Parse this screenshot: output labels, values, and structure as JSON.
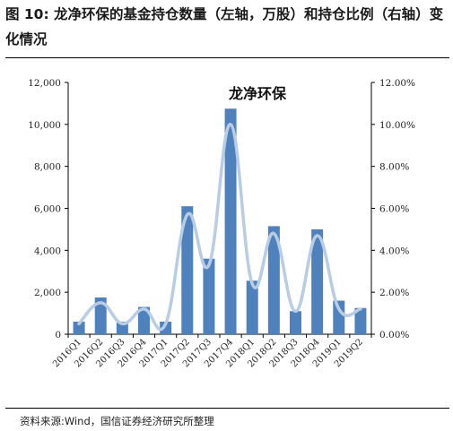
{
  "header": {
    "title": "图 10:  龙净环保的基金持仓数量（左轴，万股）和持仓比例（右轴）变化情况"
  },
  "footer": {
    "source": "资料来源:Wind，国信证券经济研究所整理"
  },
  "chart_data": {
    "type": "bar",
    "title": "龙净环保",
    "categories": [
      "2016Q1",
      "2016Q2",
      "2016Q3",
      "2016Q4",
      "2017Q1",
      "2017Q2",
      "2017Q3",
      "2017Q4",
      "2018Q1",
      "2018Q2",
      "2018Q3",
      "2018Q4",
      "2019Q1",
      "2019Q2"
    ],
    "series": [
      {
        "type": "bar",
        "axis": "left",
        "color": "#4F81BD",
        "values": [
          600,
          1750,
          600,
          1300,
          600,
          6100,
          3600,
          10750,
          2550,
          5150,
          1100,
          5000,
          1600,
          1250
        ]
      },
      {
        "type": "line",
        "axis": "right",
        "color": "#B8CCE4",
        "values": [
          0.5,
          1.5,
          0.5,
          1.2,
          0.5,
          5.7,
          3.3,
          10.0,
          2.4,
          4.8,
          1.1,
          4.7,
          1.2,
          1.2
        ]
      }
    ],
    "ylim_left": [
      0,
      12000
    ],
    "ylim_right": [
      0,
      12
    ],
    "yticks_left": [
      "0",
      "2,000",
      "4,000",
      "6,000",
      "8,000",
      "10,000",
      "12,000"
    ],
    "yticks_right": [
      "0.00%",
      "2.00%",
      "4.00%",
      "6.00%",
      "8.00%",
      "10.00%",
      "12.00%"
    ],
    "grid": false,
    "legend": "none"
  }
}
